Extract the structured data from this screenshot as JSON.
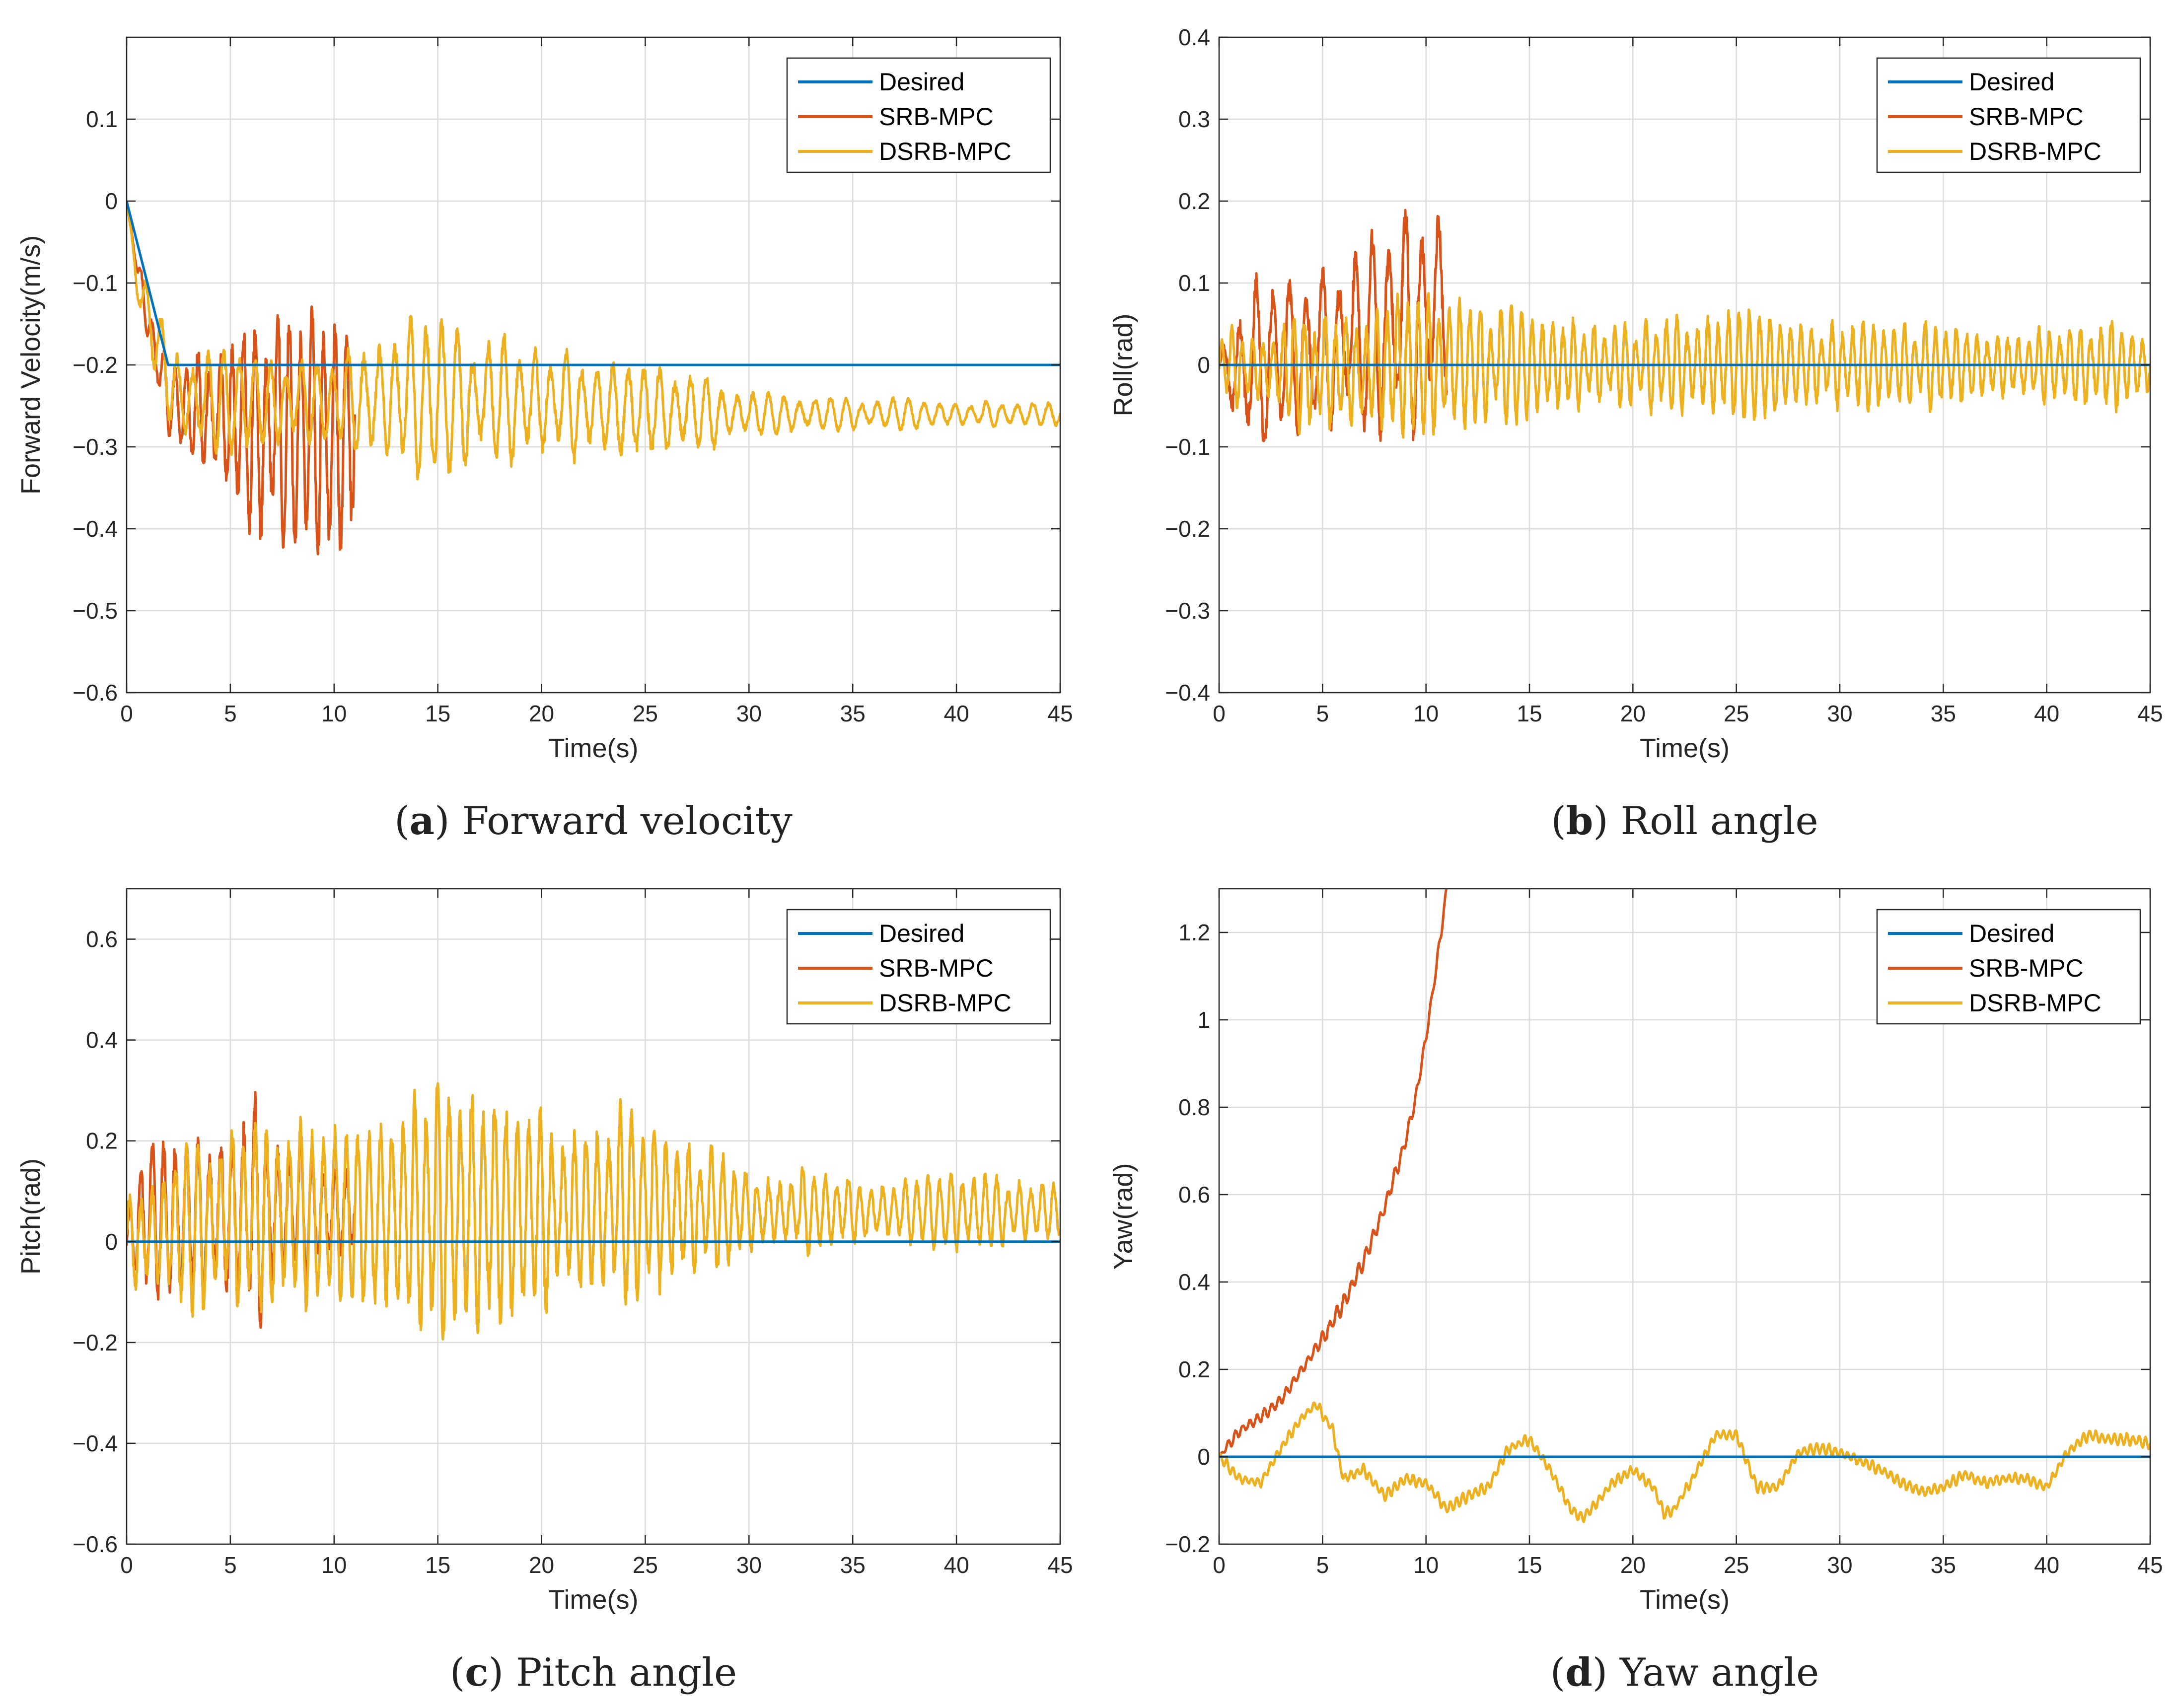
{
  "chart_data": [
    {
      "type": "line",
      "id": "a",
      "caption_letter": "a",
      "caption_text": " Forward velocity",
      "xlabel": "Time(s)",
      "ylabel": "Forward Velocity(m/s)",
      "xlim": [
        0,
        45
      ],
      "ylim": [
        -0.6,
        0.2
      ],
      "xticks": [
        0,
        5,
        10,
        15,
        20,
        25,
        30,
        35,
        40,
        45
      ],
      "xtick_labels": [
        "0",
        "5",
        "10",
        "15",
        "20",
        "25",
        "30",
        "35",
        "40",
        "45"
      ],
      "yticks": [
        -0.6,
        -0.5,
        -0.4,
        -0.3,
        -0.2,
        -0.1,
        0,
        0.1
      ],
      "ytick_labels": [
        "−0.6",
        "−0.5",
        "−0.4",
        "−0.3",
        "−0.2",
        "−0.1",
        "0",
        "0.1"
      ],
      "legend": [
        "Desired",
        "SRB-MPC",
        "DSRB-MPC"
      ],
      "series": [
        {
          "name": "Desired",
          "color": "#0072BD",
          "x": [
            0,
            2,
            45
          ],
          "y": [
            0,
            -0.2,
            -0.2
          ]
        },
        {
          "name": "SRB-MPC",
          "color": "#D95319",
          "x": [
            0,
            0.5,
            1,
            1.5,
            2,
            2.5,
            3,
            3.5,
            4,
            4.5,
            5,
            5.5,
            6,
            6.5,
            7,
            7.5,
            8,
            8.5,
            9,
            9.5,
            10,
            10.5,
            11
          ],
          "y": [
            0,
            -0.08,
            -0.14,
            -0.2,
            -0.24,
            -0.25,
            -0.26,
            -0.25,
            -0.26,
            -0.26,
            -0.27,
            -0.27,
            -0.28,
            -0.28,
            -0.28,
            -0.28,
            -0.29,
            -0.28,
            -0.28,
            -0.28,
            -0.29,
            -0.28,
            -0.27
          ],
          "amp": [
            0,
            0.01,
            0.02,
            0.03,
            0.04,
            0.05,
            0.05,
            0.06,
            0.06,
            0.07,
            0.08,
            0.08,
            0.09,
            0.1,
            0.1,
            0.11,
            0.11,
            0.11,
            0.12,
            0.12,
            0.12,
            0.13,
            0.12
          ],
          "period": 0.55
        },
        {
          "name": "DSRB-MPC",
          "color": "#EDB120",
          "x": [
            0,
            0.5,
            1,
            1.5,
            2,
            3,
            5,
            10,
            13,
            15,
            20,
            25,
            30,
            35,
            40,
            45
          ],
          "y": [
            0,
            -0.1,
            -0.14,
            -0.17,
            -0.22,
            -0.245,
            -0.245,
            -0.245,
            -0.24,
            -0.24,
            -0.245,
            -0.255,
            -0.26,
            -0.26,
            -0.26,
            -0.26
          ],
          "amp": [
            0,
            0.02,
            0.03,
            0.04,
            0.04,
            0.04,
            0.05,
            0.04,
            0.07,
            0.07,
            0.05,
            0.05,
            0.02,
            0.015,
            0.012,
            0.012
          ],
          "period": 0.75
        }
      ]
    },
    {
      "type": "line",
      "id": "b",
      "caption_letter": "b",
      "caption_text": " Roll angle",
      "xlabel": "Time(s)",
      "ylabel": "Roll(rad)",
      "xlim": [
        0,
        45
      ],
      "ylim": [
        -0.4,
        0.4
      ],
      "xticks": [
        0,
        5,
        10,
        15,
        20,
        25,
        30,
        35,
        40,
        45
      ],
      "xtick_labels": [
        "0",
        "5",
        "10",
        "15",
        "20",
        "25",
        "30",
        "35",
        "40",
        "45"
      ],
      "yticks": [
        -0.4,
        -0.3,
        -0.2,
        -0.1,
        0,
        0.1,
        0.2,
        0.3,
        0.4
      ],
      "ytick_labels": [
        "−0.4",
        "−0.3",
        "−0.2",
        "−0.1",
        "0",
        "0.1",
        "0.2",
        "0.3",
        "0.4"
      ],
      "legend": [
        "Desired",
        "SRB-MPC",
        "DSRB-MPC"
      ],
      "series": [
        {
          "name": "Desired",
          "color": "#0072BD",
          "x": [
            0,
            45
          ],
          "y": [
            0,
            0
          ]
        },
        {
          "name": "SRB-MPC",
          "color": "#D95319",
          "x": [
            0,
            1,
            2,
            3,
            4,
            5,
            6,
            7,
            8,
            9,
            10,
            11
          ],
          "y": [
            0,
            -0.01,
            0.0,
            0.01,
            0.01,
            0.02,
            0.03,
            0.03,
            0.05,
            0.05,
            0.07,
            0.07
          ],
          "amp": [
            0.02,
            0.08,
            0.08,
            0.07,
            0.07,
            0.08,
            0.08,
            0.08,
            0.1,
            0.1,
            0.11,
            0.09
          ],
          "period": 0.8
        },
        {
          "name": "DSRB-MPC",
          "color": "#EDB120",
          "x": [
            0,
            5,
            10,
            15,
            20,
            25,
            30,
            35,
            40,
            45
          ],
          "y": [
            0,
            -0.01,
            0,
            0,
            0,
            0,
            0,
            0,
            0,
            0
          ],
          "amp": [
            0.03,
            0.06,
            0.06,
            0.05,
            0.04,
            0.05,
            0.04,
            0.04,
            0.04,
            0.04
          ],
          "period": 0.5
        }
      ]
    },
    {
      "type": "line",
      "id": "c",
      "caption_letter": "c",
      "caption_text": " Pitch angle",
      "xlabel": "Time(s)",
      "ylabel": "Pitch(rad)",
      "xlim": [
        0,
        45
      ],
      "ylim": [
        -0.6,
        0.7
      ],
      "xticks": [
        0,
        5,
        10,
        15,
        20,
        25,
        30,
        35,
        40,
        45
      ],
      "xtick_labels": [
        "0",
        "5",
        "10",
        "15",
        "20",
        "25",
        "30",
        "35",
        "40",
        "45"
      ],
      "yticks": [
        -0.6,
        -0.4,
        -0.2,
        0,
        0.2,
        0.4,
        0.6
      ],
      "ytick_labels": [
        "−0.6",
        "−0.4",
        "−0.2",
        "0",
        "0.2",
        "0.4",
        "0.6"
      ],
      "legend": [
        "Desired",
        "SRB-MPC",
        "DSRB-MPC"
      ],
      "series": [
        {
          "name": "Desired",
          "color": "#0072BD",
          "x": [
            0,
            45
          ],
          "y": [
            0,
            0
          ]
        },
        {
          "name": "SRB-MPC",
          "color": "#D95319",
          "x": [
            0,
            1,
            2,
            3,
            4,
            5,
            6,
            7,
            8,
            9,
            10,
            11
          ],
          "y": [
            0,
            0.05,
            0.05,
            0.05,
            0.05,
            0.05,
            0.06,
            0.06,
            0.06,
            0.06,
            0.06,
            0.07
          ],
          "amp": [
            0.05,
            0.12,
            0.12,
            0.13,
            0.14,
            0.15,
            0.16,
            0.17,
            0.14,
            0.1,
            0.09,
            0.1
          ],
          "period": 0.55
        },
        {
          "name": "DSRB-MPC",
          "color": "#EDB120",
          "x": [
            0,
            5,
            10,
            15,
            20,
            25,
            30,
            35,
            40,
            45
          ],
          "y": [
            0,
            0.05,
            0.05,
            0.06,
            0.06,
            0.07,
            0.06,
            0.06,
            0.06,
            0.06
          ],
          "amp": [
            0.08,
            0.17,
            0.12,
            0.2,
            0.16,
            0.14,
            0.08,
            0.05,
            0.06,
            0.04
          ],
          "period": 0.55
        }
      ]
    },
    {
      "type": "line",
      "id": "d",
      "caption_letter": "d",
      "caption_text": " Yaw angle",
      "xlabel": "Time(s)",
      "ylabel": "Yaw(rad)",
      "xlim": [
        0,
        45
      ],
      "ylim": [
        -0.2,
        1.3
      ],
      "xticks": [
        0,
        5,
        10,
        15,
        20,
        25,
        30,
        35,
        40,
        45
      ],
      "xtick_labels": [
        "0",
        "5",
        "10",
        "15",
        "20",
        "25",
        "30",
        "35",
        "40",
        "45"
      ],
      "yticks": [
        -0.2,
        0,
        0.2,
        0.4,
        0.6,
        0.8,
        1,
        1.2
      ],
      "ytick_labels": [
        "−0.2",
        "0",
        "0.2",
        "0.4",
        "0.6",
        "0.8",
        "1",
        "1.2"
      ],
      "legend": [
        "Desired",
        "SRB-MPC",
        "DSRB-MPC"
      ],
      "series": [
        {
          "name": "Desired",
          "color": "#0072BD",
          "x": [
            0,
            45
          ],
          "y": [
            0,
            0
          ]
        },
        {
          "name": "SRB-MPC",
          "color": "#D95319",
          "x": [
            0,
            0.5,
            1,
            2,
            3,
            4,
            5,
            6,
            7,
            8,
            9,
            9.5,
            10,
            10.5,
            11
          ],
          "y": [
            0,
            0.03,
            0.06,
            0.09,
            0.13,
            0.2,
            0.27,
            0.35,
            0.45,
            0.57,
            0.72,
            0.82,
            0.96,
            1.12,
            1.3
          ],
          "amp": [
            0,
            0.01,
            0.01,
            0.01,
            0.01,
            0.01,
            0.015,
            0.015,
            0.015,
            0.015,
            0.015,
            0.01,
            0.01,
            0.01,
            0.01
          ],
          "period": 0.35
        },
        {
          "name": "DSRB-MPC",
          "color": "#EDB120",
          "x": [
            0,
            1,
            2,
            3,
            4,
            4.7,
            5.5,
            6,
            7,
            8,
            9,
            10,
            11,
            12,
            13,
            14,
            15,
            16,
            17,
            17.5,
            18,
            19,
            20,
            21,
            21.5,
            22,
            23,
            24,
            25,
            26,
            27,
            28,
            29,
            30,
            31,
            32,
            33,
            34,
            35,
            36,
            37,
            38,
            39,
            40,
            41,
            42,
            43,
            44,
            45
          ],
          "y": [
            0,
            -0.05,
            -0.06,
            0.02,
            0.09,
            0.12,
            0.06,
            -0.05,
            -0.03,
            -0.09,
            -0.05,
            -0.06,
            -0.12,
            -0.09,
            -0.07,
            0.02,
            0.04,
            -0.03,
            -0.12,
            -0.14,
            -0.12,
            -0.06,
            -0.03,
            -0.07,
            -0.13,
            -0.12,
            -0.04,
            0.05,
            0.05,
            -0.07,
            -0.07,
            0.01,
            0.02,
            0.01,
            -0.01,
            -0.03,
            -0.06,
            -0.08,
            -0.07,
            -0.04,
            -0.06,
            -0.05,
            -0.05,
            -0.07,
            0.01,
            0.05,
            0.04,
            0.04,
            0.03
          ],
          "amp": [
            0.01,
            0.01,
            0.01,
            0.01,
            0.01,
            0.01,
            0.01,
            0.01,
            0.01,
            0.01,
            0.01,
            0.01,
            0.01,
            0.01,
            0.01,
            0.01,
            0.01,
            0.01,
            0.01,
            0.01,
            0.01,
            0.01,
            0.01,
            0.01,
            0.01,
            0.01,
            0.01,
            0.01,
            0.01,
            0.01,
            0.01,
            0.01,
            0.01,
            0.01,
            0.01,
            0.01,
            0.01,
            0.01,
            0.01,
            0.01,
            0.01,
            0.01,
            0.01,
            0.01,
            0.01,
            0.01,
            0.01,
            0.01,
            0.01
          ],
          "period": 0.3
        }
      ]
    }
  ]
}
